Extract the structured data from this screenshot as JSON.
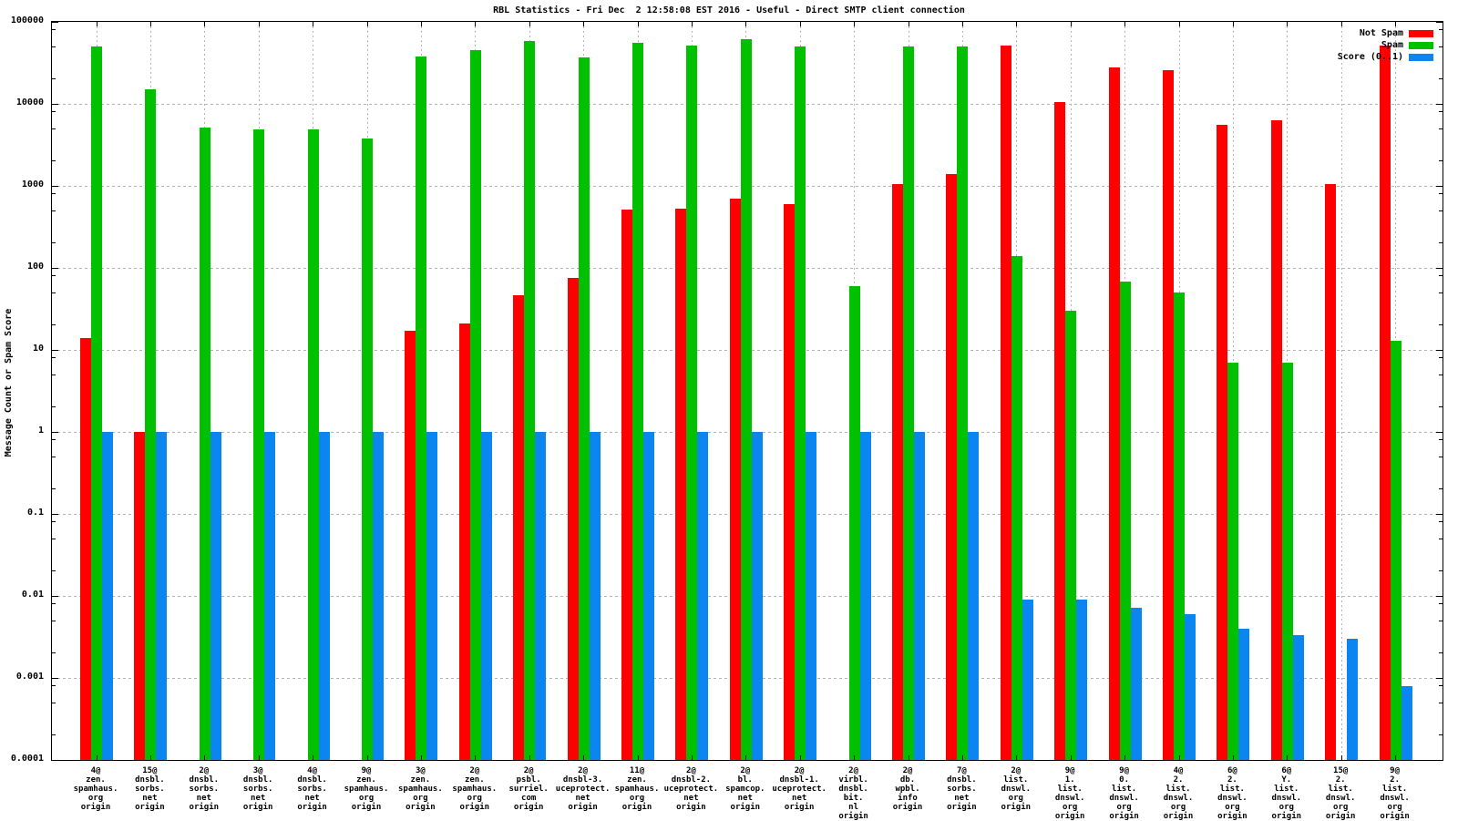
{
  "title": "RBL Statistics - Fri Dec  2 12:58:08 EST 2016 - Useful - Direct SMTP client connection",
  "y_axis_label": "Message Count or Spam Score",
  "colors": {
    "not_spam": "#ff0000",
    "spam": "#00c000",
    "score": "#0b85f0",
    "grid": "#b3b3b3"
  },
  "chart_data": {
    "type": "bar",
    "title": "RBL Statistics - Fri Dec  2 12:58:08 EST 2016 - Useful - Direct SMTP client connection",
    "ylabel": "Message Count or Spam Score",
    "xlabel": "",
    "yscale": "log",
    "ylim": [
      0.0001,
      100000
    ],
    "y_tick_labels": [
      "100000",
      "10000",
      "1000",
      "100",
      "10",
      "1",
      "0.1",
      "0.01",
      "0.001",
      "0.0001"
    ],
    "grid": true,
    "legend_position": "top-right",
    "categories": [
      [
        "4@",
        "zen.",
        "spamhaus.",
        "org",
        "origin"
      ],
      [
        "15@",
        "dnsbl.",
        "sorbs.",
        "net",
        "origin"
      ],
      [
        "2@",
        "dnsbl.",
        "sorbs.",
        "net",
        "origin"
      ],
      [
        "3@",
        "dnsbl.",
        "sorbs.",
        "net",
        "origin"
      ],
      [
        "4@",
        "dnsbl.",
        "sorbs.",
        "net",
        "origin"
      ],
      [
        "9@",
        "zen.",
        "spamhaus.",
        "org",
        "origin"
      ],
      [
        "3@",
        "zen.",
        "spamhaus.",
        "org",
        "origin"
      ],
      [
        "2@",
        "zen.",
        "spamhaus.",
        "org",
        "origin"
      ],
      [
        "2@",
        "psbl.",
        "surriel.",
        "com",
        "origin"
      ],
      [
        "2@",
        "dnsbl-3.",
        "uceprotect.",
        "net",
        "origin"
      ],
      [
        "11@",
        "zen.",
        "spamhaus.",
        "org",
        "origin"
      ],
      [
        "2@",
        "dnsbl-2.",
        "uceprotect.",
        "net",
        "origin"
      ],
      [
        "2@",
        "bl.",
        "spamcop.",
        "net",
        "origin"
      ],
      [
        "2@",
        "dnsbl-1.",
        "uceprotect.",
        "net",
        "origin"
      ],
      [
        "2@",
        "virbl.",
        "dnsbl.",
        "bit.",
        "nl",
        "origin"
      ],
      [
        "2@",
        "db.",
        "wpbl.",
        "info",
        "origin"
      ],
      [
        "7@",
        "dnsbl.",
        "sorbs.",
        "net",
        "origin"
      ],
      [
        "2@",
        "list.",
        "dnswl.",
        "org",
        "origin"
      ],
      [
        "9@",
        "1.",
        "list.",
        "dnswl.",
        "org",
        "origin"
      ],
      [
        "9@",
        "0.",
        "list.",
        "dnswl.",
        "org",
        "origin"
      ],
      [
        "4@",
        "2.",
        "list.",
        "dnswl.",
        "org",
        "origin"
      ],
      [
        "6@",
        "2.",
        "list.",
        "dnswl.",
        "org",
        "origin"
      ],
      [
        "6@",
        "Y.",
        "list.",
        "dnswl.",
        "org",
        "origin"
      ],
      [
        "15@",
        "2.",
        "list.",
        "dnswl.",
        "org",
        "origin"
      ],
      [
        "9@",
        "2.",
        "list.",
        "dnswl.",
        "org",
        "origin"
      ]
    ],
    "series": [
      {
        "name": "Not Spam",
        "color": "#ff0000",
        "values": [
          14,
          1,
          null,
          null,
          null,
          null,
          17,
          21,
          46,
          75,
          520,
          525,
          700,
          600,
          null,
          1050,
          1400,
          52000,
          10500,
          28000,
          26000,
          5500,
          6300,
          1050,
          52000
        ]
      },
      {
        "name": "Spam",
        "color": "#00c000",
        "values": [
          50000,
          15000,
          5100,
          4900,
          4900,
          3800,
          38000,
          45000,
          59000,
          37000,
          55000,
          52000,
          61000,
          50000,
          60,
          50000,
          50000,
          140,
          30,
          68,
          50,
          7,
          7,
          null,
          13
        ]
      },
      {
        "name": "Score (0..1)",
        "color": "#0b85f0",
        "values": [
          1,
          1,
          1,
          1,
          1,
          1,
          1,
          1,
          1,
          1,
          1,
          1,
          1,
          1,
          1,
          1,
          1,
          0.009,
          0.009,
          0.0072,
          0.006,
          0.004,
          0.0033,
          0.003,
          0.0008
        ]
      }
    ]
  }
}
